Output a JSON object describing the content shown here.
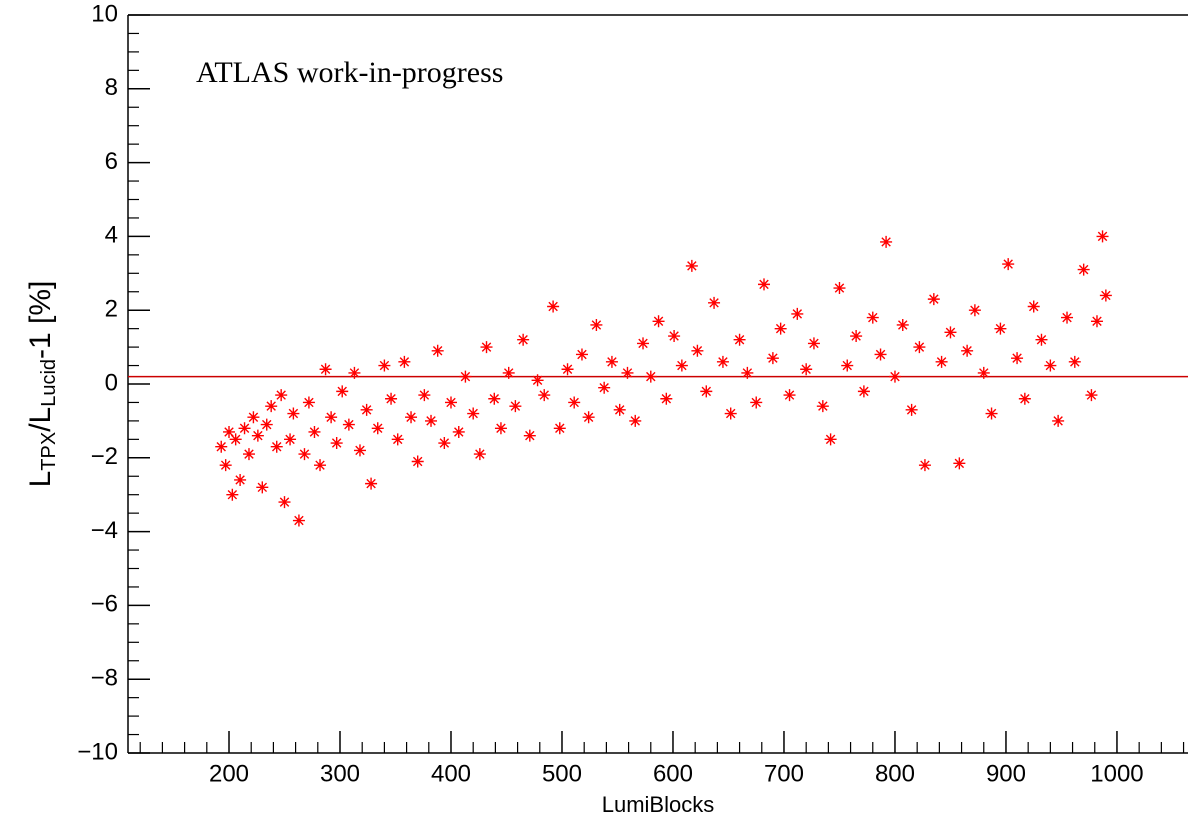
{
  "chart_data": {
    "type": "scatter",
    "annotation": "ATLAS work-in-progress",
    "xlabel": "LumiBlocks",
    "ylabel_parts": [
      "L",
      "TPX",
      "/L",
      "Lucid",
      "-1 [%]"
    ],
    "color": "#ff0000",
    "reference_line": {
      "value": 0.2,
      "color": "#cc0000"
    },
    "xlim": [
      109,
      1064
    ],
    "ylim": [
      -10,
      10
    ],
    "xticks": [
      200,
      300,
      400,
      500,
      600,
      700,
      800,
      900,
      1000
    ],
    "xminor_ticks": [
      120,
      140,
      160,
      180,
      220,
      240,
      260,
      280,
      320,
      340,
      360,
      380,
      420,
      440,
      460,
      480,
      520,
      540,
      560,
      580,
      620,
      640,
      660,
      680,
      720,
      740,
      760,
      780,
      820,
      840,
      860,
      880,
      920,
      940,
      960,
      980,
      1020,
      1040,
      1060
    ],
    "yticks": [
      {
        "value": -10,
        "label": "−10"
      },
      {
        "value": -8,
        "label": "−8"
      },
      {
        "value": -6,
        "label": "−6"
      },
      {
        "value": -4,
        "label": "−4"
      },
      {
        "value": -2,
        "label": "−2"
      },
      0,
      2,
      4,
      6,
      8,
      10
    ],
    "yminor_ticks": [
      -9.5,
      -9,
      -8.5,
      -7.5,
      -7,
      -6.5,
      -5.5,
      -5,
      -4.5,
      -3.5,
      -3,
      -2.5,
      -1.5,
      -1,
      -0.5,
      0.5,
      1,
      1.5,
      2.5,
      3,
      3.5,
      4.5,
      5,
      5.5,
      6.5,
      7,
      7.5,
      8.5,
      9,
      9.5
    ],
    "x": [
      193,
      197,
      200,
      203,
      206,
      210,
      214,
      218,
      222,
      226,
      230,
      234,
      238,
      243,
      247,
      250,
      255,
      258,
      263,
      268,
      272,
      277,
      282,
      287,
      292,
      297,
      302,
      308,
      313,
      318,
      324,
      328,
      334,
      340,
      346,
      352,
      358,
      364,
      370,
      376,
      382,
      388,
      394,
      400,
      407,
      413,
      420,
      426,
      432,
      439,
      445,
      452,
      458,
      465,
      471,
      478,
      484,
      492,
      498,
      505,
      511,
      518,
      524,
      531,
      538,
      545,
      552,
      559,
      566,
      573,
      580,
      587,
      594,
      601,
      608,
      617,
      622,
      630,
      637,
      645,
      652,
      660,
      667,
      675,
      682,
      690,
      697,
      705,
      712,
      720,
      727,
      735,
      742,
      750,
      757,
      765,
      772,
      780,
      787,
      792,
      800,
      807,
      815,
      822,
      827,
      835,
      842,
      850,
      858,
      865,
      872,
      880,
      887,
      895,
      902,
      910,
      917,
      925,
      932,
      940,
      947,
      955,
      962,
      970,
      977,
      982,
      987,
      990
    ],
    "values": [
      -1.7,
      -2.2,
      -1.3,
      -3.0,
      -1.5,
      -2.6,
      -1.2,
      -1.9,
      -0.9,
      -1.4,
      -2.8,
      -1.1,
      -0.6,
      -1.7,
      -0.3,
      -3.2,
      -1.5,
      -0.8,
      -3.7,
      -1.9,
      -0.5,
      -1.3,
      -2.2,
      0.4,
      -0.9,
      -1.6,
      -0.2,
      -1.1,
      0.3,
      -1.8,
      -0.7,
      -2.7,
      -1.2,
      0.5,
      -0.4,
      -1.5,
      0.6,
      -0.9,
      -2.1,
      -0.3,
      -1.0,
      0.9,
      -1.6,
      -0.5,
      -1.3,
      0.2,
      -0.8,
      -1.9,
      1.0,
      -0.4,
      -1.2,
      0.3,
      -0.6,
      1.2,
      -1.4,
      0.1,
      -0.3,
      2.1,
      -1.2,
      0.4,
      -0.5,
      0.8,
      -0.9,
      1.6,
      -0.1,
      0.6,
      -0.7,
      0.3,
      -1.0,
      1.1,
      0.2,
      1.7,
      -0.4,
      1.3,
      0.5,
      3.2,
      0.9,
      -0.2,
      2.2,
      0.6,
      -0.8,
      1.2,
      0.3,
      -0.5,
      2.7,
      0.7,
      1.5,
      -0.3,
      1.9,
      0.4,
      1.1,
      -0.6,
      -1.5,
      2.6,
      0.5,
      1.3,
      -0.2,
      1.8,
      0.8,
      3.85,
      0.2,
      1.6,
      -0.7,
      1.0,
      -2.2,
      2.3,
      0.6,
      1.4,
      -2.15,
      0.9,
      2.0,
      0.3,
      -0.8,
      1.5,
      3.25,
      0.7,
      -0.4,
      2.1,
      1.2,
      0.5,
      -1.0,
      1.8,
      0.6,
      3.1,
      -0.3,
      1.7,
      4.0,
      2.4
    ]
  }
}
